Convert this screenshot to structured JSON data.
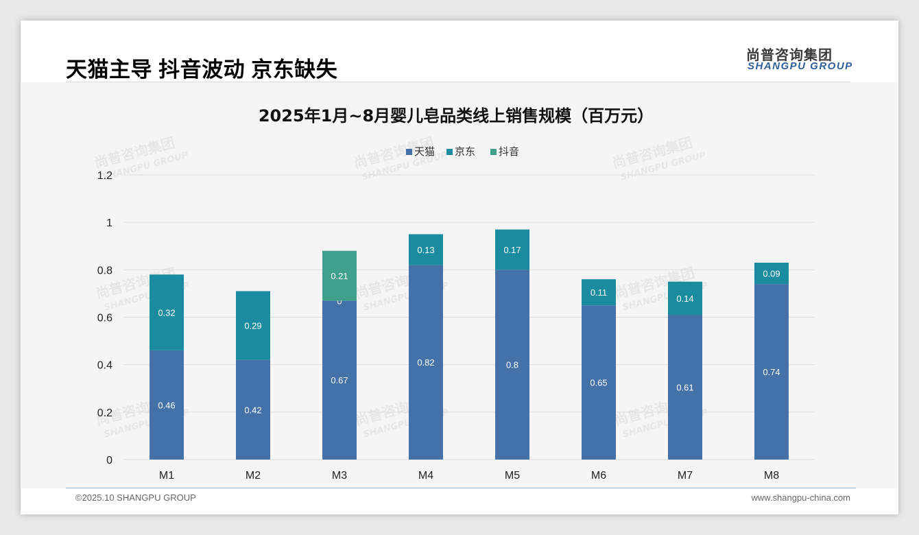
{
  "headline": "天猫主导 抖音波动 京东缺失",
  "logo": {
    "cn": "尚普咨询集团",
    "en": "SHANGPU GROUP"
  },
  "watermark": {
    "cn": "尚普咨询集团",
    "en": "SHANGPU GROUP"
  },
  "footer": {
    "left": "©2025.10 SHANGPU GROUP",
    "right": "www.shangpu-china.com"
  },
  "colors": {
    "tmall": "#4472a8",
    "jd": "#1b8ca0",
    "douyin": "#3fa08c",
    "grid": "#dcdcdc"
  },
  "chart_data": {
    "type": "bar",
    "stacked": true,
    "title": "2025年1月~8月婴儿皂品类线上销售规模（百万元）",
    "categories": [
      "M1",
      "M2",
      "M3",
      "M4",
      "M5",
      "M6",
      "M7",
      "M8"
    ],
    "ylim": [
      0,
      1.2
    ],
    "yticks": [
      "0",
      "0.2",
      "0.4",
      "0.6",
      "0.8",
      "1",
      "1.2"
    ],
    "ytick_values": [
      0,
      0.2,
      0.4,
      0.6,
      0.8,
      1.0,
      1.2
    ],
    "legend_position": "top-center",
    "series": [
      {
        "name": "天猫",
        "values": [
          0.46,
          0.42,
          0.67,
          0.82,
          0.8,
          0.65,
          0.61,
          0.74
        ],
        "labels": [
          "0.46",
          "0.42",
          "0.67",
          "0.82",
          "0.8",
          "0.65",
          "0.61",
          "0.74"
        ]
      },
      {
        "name": "京东",
        "values": [
          0.32,
          0.29,
          0,
          0.13,
          0.17,
          0.11,
          0.14,
          0.09
        ],
        "labels": [
          "0.32",
          "0.29",
          "0",
          "0.13",
          "0.17",
          "0.11",
          "0.14",
          "0.09"
        ]
      },
      {
        "name": "抖音",
        "values": [
          0,
          0,
          0.21,
          0,
          0,
          0,
          0,
          0
        ],
        "labels": [
          "",
          "",
          "0.21",
          "",
          "",
          "",
          "",
          ""
        ]
      }
    ]
  }
}
